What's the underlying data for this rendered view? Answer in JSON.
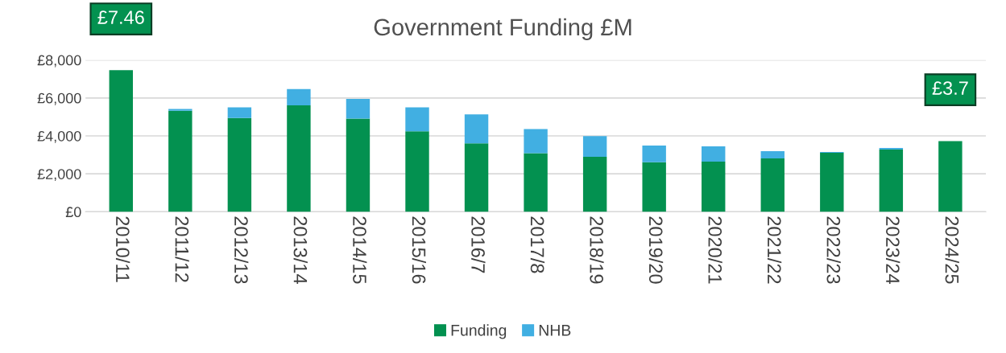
{
  "chart_data": {
    "type": "bar",
    "title": "Government Funding £M",
    "stacked": true,
    "categories": [
      "2010/11",
      "2011/12",
      "2012/13",
      "2013/14",
      "2014/15",
      "2015/16",
      "2016/7",
      "2017/8",
      "2018/19",
      "2019/20",
      "2020/21",
      "2021/22",
      "2022/23",
      "2023/24",
      "2024/25"
    ],
    "series": [
      {
        "name": "Funding",
        "color": "#039150",
        "values": [
          7460,
          5320,
          4940,
          5610,
          4910,
          4240,
          3610,
          3090,
          2900,
          2610,
          2640,
          2810,
          3110,
          3280,
          3730
        ]
      },
      {
        "name": "NHB",
        "color": "#41afe2",
        "values": [
          0,
          100,
          560,
          860,
          1040,
          1260,
          1520,
          1270,
          1090,
          880,
          810,
          390,
          40,
          90,
          0
        ]
      }
    ],
    "ylim": [
      0,
      8000
    ],
    "yticks": [
      {
        "value": 0,
        "label": "£0"
      },
      {
        "value": 2000,
        "label": "£2,000"
      },
      {
        "value": 4000,
        "label": "£4,000"
      },
      {
        "value": 6000,
        "label": "£6,000"
      },
      {
        "value": 8000,
        "label": "£8,000"
      }
    ],
    "grid": "y",
    "legend": "bottom",
    "annotations": [
      {
        "text": "£7.46",
        "x": "2010/11",
        "y": 7460
      },
      {
        "text": "£3.7",
        "x": "2024/25",
        "y": 3730
      }
    ]
  }
}
